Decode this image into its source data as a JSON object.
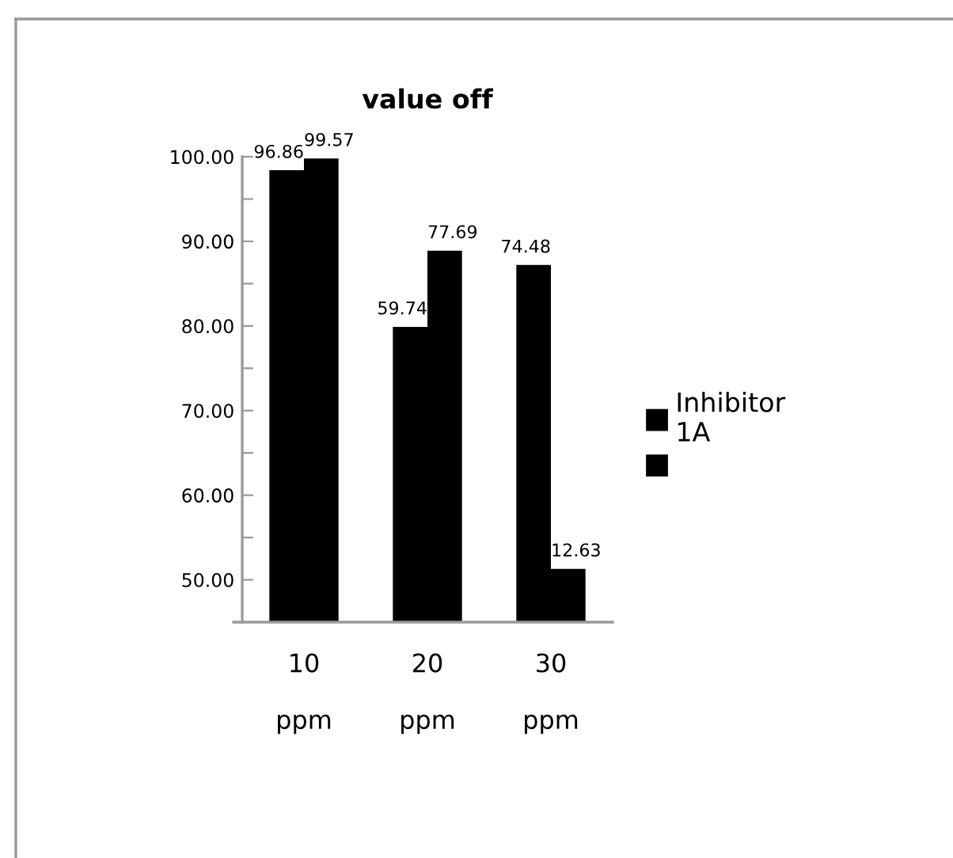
{
  "chart_data": {
    "type": "bar",
    "title": "value off",
    "categories": [
      "10 ppm",
      "20 ppm",
      "30 ppm"
    ],
    "series": [
      {
        "name": "Inhibitor 1A",
        "color": "#000000",
        "values": [
          98.4,
          79.9,
          87.2
        ]
      },
      {
        "color": "#000000",
        "values": [
          99.8,
          88.9,
          51.3
        ]
      }
    ],
    "annotations": [
      {
        "text": "96.86",
        "x": "10 ppm",
        "y": 98.4
      },
      {
        "text": "99.57",
        "x": "10 ppm",
        "y": 99.8
      },
      {
        "text": "59.74",
        "x": "20 ppm",
        "y": 79.9
      },
      {
        "text": "77.69",
        "x": "20 ppm",
        "y": 88.9
      },
      {
        "text": "74.48",
        "x": "30 ppm",
        "y": 87.2
      },
      {
        "text": "12.63",
        "x": "30 ppm",
        "y": 51.3
      }
    ],
    "ylim": [
      45,
      100
    ],
    "yticks": [
      {
        "value": 50,
        "label": "50.00"
      },
      {
        "value": 55,
        "label": null
      },
      {
        "value": 60,
        "label": "60.00"
      },
      {
        "value": 65,
        "label": null
      },
      {
        "value": 70,
        "label": "70.00"
      },
      {
        "value": 75,
        "label": null
      },
      {
        "value": 80,
        "label": "80.00"
      },
      {
        "value": 85,
        "label": null
      },
      {
        "value": 90,
        "label": "90.00"
      },
      {
        "value": 95,
        "label": null
      },
      {
        "value": 100,
        "label": "100.00"
      }
    ],
    "grid": false,
    "legend": "right"
  }
}
